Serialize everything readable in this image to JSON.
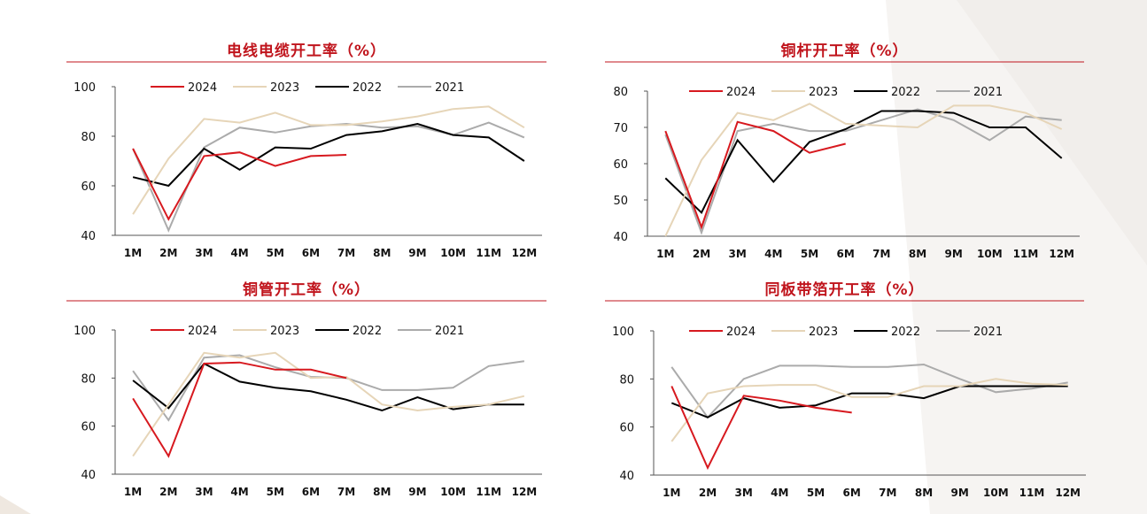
{
  "colors": {
    "title": "#c0141c",
    "rule": "#c0141c",
    "axis": "#555555",
    "s2024": "#d7191f",
    "s2023": "#e6d5b8",
    "s2022": "#000000",
    "s2021": "#ababab"
  },
  "chart_data": [
    {
      "type": "line",
      "title": "电线电缆开工率（%）",
      "categories": [
        "1M",
        "2M",
        "3M",
        "4M",
        "5M",
        "6M",
        "7M",
        "8M",
        "9M",
        "10M",
        "11M",
        "12M"
      ],
      "yticks": [
        40,
        60,
        80,
        100
      ],
      "ylim": [
        40,
        100
      ],
      "legend": "top",
      "series": [
        {
          "name": "2024",
          "color": "#d7191f",
          "values": [
            75,
            46.5,
            72,
            73.5,
            68,
            72,
            72.5,
            null,
            null,
            null,
            null,
            null
          ]
        },
        {
          "name": "2023",
          "color": "#e6d5b8",
          "values": [
            48.5,
            71,
            87,
            85.5,
            89.5,
            84.5,
            84.5,
            86,
            88,
            91,
            92,
            83.5
          ]
        },
        {
          "name": "2022",
          "color": "#000000",
          "values": [
            63.5,
            60,
            75,
            66.5,
            75.5,
            75,
            80.5,
            82,
            85,
            80.5,
            79.5,
            70
          ]
        },
        {
          "name": "2021",
          "color": "#ababab",
          "values": [
            75,
            42,
            75.5,
            83.5,
            81.5,
            84,
            85,
            83.5,
            84,
            80.5,
            85.5,
            79.5
          ]
        }
      ]
    },
    {
      "type": "line",
      "title": "铜杆开工率（%）",
      "categories": [
        "1M",
        "2M",
        "3M",
        "4M",
        "5M",
        "6M",
        "7M",
        "8M",
        "9M",
        "10M",
        "11M",
        "12M"
      ],
      "yticks": [
        40,
        50,
        60,
        70,
        80
      ],
      "ylim": [
        40,
        80
      ],
      "legend": "top",
      "series": [
        {
          "name": "2024",
          "color": "#d7191f",
          "values": [
            69,
            42.5,
            71.5,
            69,
            63,
            65.5,
            null,
            null,
            null,
            null,
            null,
            null
          ]
        },
        {
          "name": "2023",
          "color": "#e6d5b8",
          "values": [
            40,
            61,
            74,
            72,
            76.5,
            71,
            70.5,
            70,
            76,
            76,
            74,
            69.5
          ]
        },
        {
          "name": "2022",
          "color": "#000000",
          "values": [
            56,
            46.5,
            66.5,
            55,
            66,
            69.5,
            74.5,
            74.5,
            74,
            70,
            70,
            61.5
          ]
        },
        {
          "name": "2021",
          "color": "#ababab",
          "values": [
            68,
            41,
            69,
            71,
            69,
            69,
            72,
            75,
            72,
            66.5,
            73,
            72
          ]
        }
      ]
    },
    {
      "type": "line",
      "title": "铜管开工率（%）",
      "categories": [
        "1M",
        "2M",
        "3M",
        "4M",
        "5M",
        "6M",
        "7M",
        "8M",
        "9M",
        "10M",
        "11M",
        "12M"
      ],
      "yticks": [
        40,
        60,
        80,
        100
      ],
      "ylim": [
        40,
        100
      ],
      "legend": "top",
      "series": [
        {
          "name": "2024",
          "color": "#d7191f",
          "values": [
            71.5,
            47.5,
            86,
            86.5,
            83.5,
            83.5,
            80,
            null,
            null,
            null,
            null,
            null
          ]
        },
        {
          "name": "2023",
          "color": "#e6d5b8",
          "values": [
            47.5,
            69,
            90.5,
            88.5,
            90.5,
            80,
            80.5,
            69,
            66.5,
            68,
            69,
            72.5
          ]
        },
        {
          "name": "2022",
          "color": "#000000",
          "values": [
            79,
            67.5,
            86,
            78.5,
            76,
            74.5,
            71,
            66.5,
            72,
            67,
            69,
            69
          ]
        },
        {
          "name": "2021",
          "color": "#ababab",
          "values": [
            83,
            62.5,
            88.5,
            89.5,
            84.5,
            80.5,
            80,
            75,
            75,
            76,
            85,
            87
          ]
        }
      ]
    },
    {
      "type": "line",
      "title": "同板带箔开工率（%）",
      "categories": [
        "1M",
        "2M",
        "3M",
        "4M",
        "5M",
        "6M",
        "7M",
        "8M",
        "9M",
        "10M",
        "11M",
        "12M"
      ],
      "yticks": [
        40,
        60,
        80,
        100
      ],
      "ylim": [
        40,
        100
      ],
      "legend": "top",
      "series": [
        {
          "name": "2024",
          "color": "#d7191f",
          "values": [
            77,
            43,
            73,
            71,
            68,
            66,
            null,
            null,
            null,
            null,
            null,
            null
          ]
        },
        {
          "name": "2023",
          "color": "#e6d5b8",
          "values": [
            54,
            74,
            77,
            77.5,
            77.5,
            72.5,
            72.5,
            77,
            77,
            80,
            78,
            77.5
          ]
        },
        {
          "name": "2022",
          "color": "#000000",
          "values": [
            70,
            64,
            72,
            68,
            69,
            74,
            74,
            72,
            77,
            77,
            77,
            77
          ]
        },
        {
          "name": "2021",
          "color": "#ababab",
          "values": [
            85,
            64,
            80,
            85.5,
            85.5,
            85,
            85,
            86,
            80,
            74.5,
            76,
            78.5
          ]
        }
      ]
    }
  ]
}
